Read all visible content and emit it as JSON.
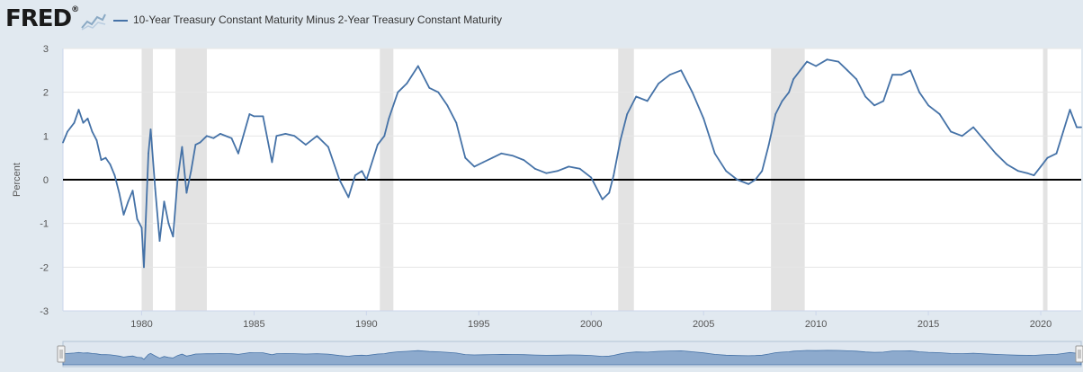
{
  "header": {
    "logo": "FRED",
    "logo_mark": "®",
    "series_name": "10-Year Treasury Constant Maturity Minus 2-Year Treasury Constant Maturity",
    "series_color": "#4572a7"
  },
  "chart_data": {
    "type": "line",
    "title": "10-Year Treasury Constant Maturity Minus 2-Year Treasury Constant Maturity",
    "xlabel": "",
    "ylabel": "Percent",
    "xlim": [
      1976.5,
      2021.8
    ],
    "ylim": [
      -3,
      3
    ],
    "xticks": [
      1980,
      1985,
      1990,
      1995,
      2000,
      2005,
      2010,
      2015,
      2020
    ],
    "yticks": [
      -3,
      -2,
      -1,
      0,
      1,
      2,
      3
    ],
    "recessions": [
      [
        1980.0,
        1980.5
      ],
      [
        1981.5,
        1982.9
      ],
      [
        1990.6,
        1991.2
      ],
      [
        2001.2,
        2001.9
      ],
      [
        2008.0,
        2009.5
      ],
      [
        2020.1,
        2020.3
      ]
    ],
    "series": [
      {
        "name": "10-Year Treasury Constant Maturity Minus 2-Year Treasury Constant Maturity",
        "x": [
          1976.5,
          1976.7,
          1977.0,
          1977.2,
          1977.4,
          1977.6,
          1977.8,
          1978.0,
          1978.2,
          1978.4,
          1978.6,
          1978.8,
          1979.0,
          1979.2,
          1979.4,
          1979.6,
          1979.8,
          1980.0,
          1980.1,
          1980.3,
          1980.4,
          1980.6,
          1980.8,
          1981.0,
          1981.2,
          1981.4,
          1981.6,
          1981.8,
          1982.0,
          1982.2,
          1982.4,
          1982.6,
          1982.9,
          1983.2,
          1983.5,
          1984.0,
          1984.3,
          1984.8,
          1985.0,
          1985.4,
          1985.8,
          1986.0,
          1986.4,
          1986.8,
          1987.3,
          1987.8,
          1988.3,
          1988.8,
          1989.2,
          1989.5,
          1989.8,
          1990.0,
          1990.5,
          1990.8,
          1991.0,
          1991.4,
          1991.8,
          1992.3,
          1992.8,
          1993.2,
          1993.6,
          1994.0,
          1994.4,
          1994.8,
          1995.2,
          1995.6,
          1996.0,
          1996.5,
          1997.0,
          1997.5,
          1998.0,
          1998.5,
          1999.0,
          1999.5,
          2000.0,
          2000.5,
          2000.8,
          2001.0,
          2001.3,
          2001.6,
          2002.0,
          2002.5,
          2003.0,
          2003.5,
          2004.0,
          2004.5,
          2005.0,
          2005.5,
          2006.0,
          2006.5,
          2007.0,
          2007.3,
          2007.6,
          2007.9,
          2008.2,
          2008.5,
          2008.8,
          2009.0,
          2009.3,
          2009.6,
          2010.0,
          2010.5,
          2011.0,
          2011.4,
          2011.8,
          2012.2,
          2012.6,
          2013.0,
          2013.4,
          2013.8,
          2014.2,
          2014.6,
          2015.0,
          2015.5,
          2016.0,
          2016.5,
          2017.0,
          2017.5,
          2018.0,
          2018.5,
          2019.0,
          2019.4,
          2019.7,
          2020.0,
          2020.3,
          2020.7,
          2021.0,
          2021.3,
          2021.6,
          2021.8
        ],
        "values": [
          0.85,
          1.1,
          1.3,
          1.6,
          1.3,
          1.4,
          1.1,
          0.9,
          0.45,
          0.5,
          0.35,
          0.1,
          -0.3,
          -0.8,
          -0.5,
          -0.25,
          -0.9,
          -1.1,
          -2.0,
          0.6,
          1.15,
          -0.2,
          -1.4,
          -0.5,
          -1.0,
          -1.3,
          0.0,
          0.75,
          -0.3,
          0.2,
          0.8,
          0.85,
          1.0,
          0.95,
          1.05,
          0.95,
          0.6,
          1.5,
          1.45,
          1.45,
          0.4,
          1.0,
          1.05,
          1.0,
          0.8,
          1.0,
          0.75,
          0.0,
          -0.4,
          0.1,
          0.2,
          0.0,
          0.8,
          1.0,
          1.4,
          2.0,
          2.2,
          2.6,
          2.1,
          2.0,
          1.7,
          1.3,
          0.5,
          0.3,
          0.4,
          0.5,
          0.6,
          0.55,
          0.45,
          0.25,
          0.15,
          0.2,
          0.3,
          0.25,
          0.05,
          -0.45,
          -0.3,
          0.1,
          0.9,
          1.5,
          1.9,
          1.8,
          2.2,
          2.4,
          2.5,
          2.0,
          1.4,
          0.6,
          0.2,
          0.0,
          -0.1,
          0.0,
          0.2,
          0.8,
          1.5,
          1.8,
          2.0,
          2.3,
          2.5,
          2.7,
          2.6,
          2.75,
          2.7,
          2.5,
          2.3,
          1.9,
          1.7,
          1.8,
          2.4,
          2.4,
          2.5,
          2.0,
          1.7,
          1.5,
          1.1,
          1.0,
          1.2,
          0.9,
          0.6,
          0.35,
          0.2,
          0.15,
          0.1,
          0.3,
          0.5,
          0.6,
          1.1,
          1.6,
          1.2,
          1.2
        ]
      }
    ]
  }
}
